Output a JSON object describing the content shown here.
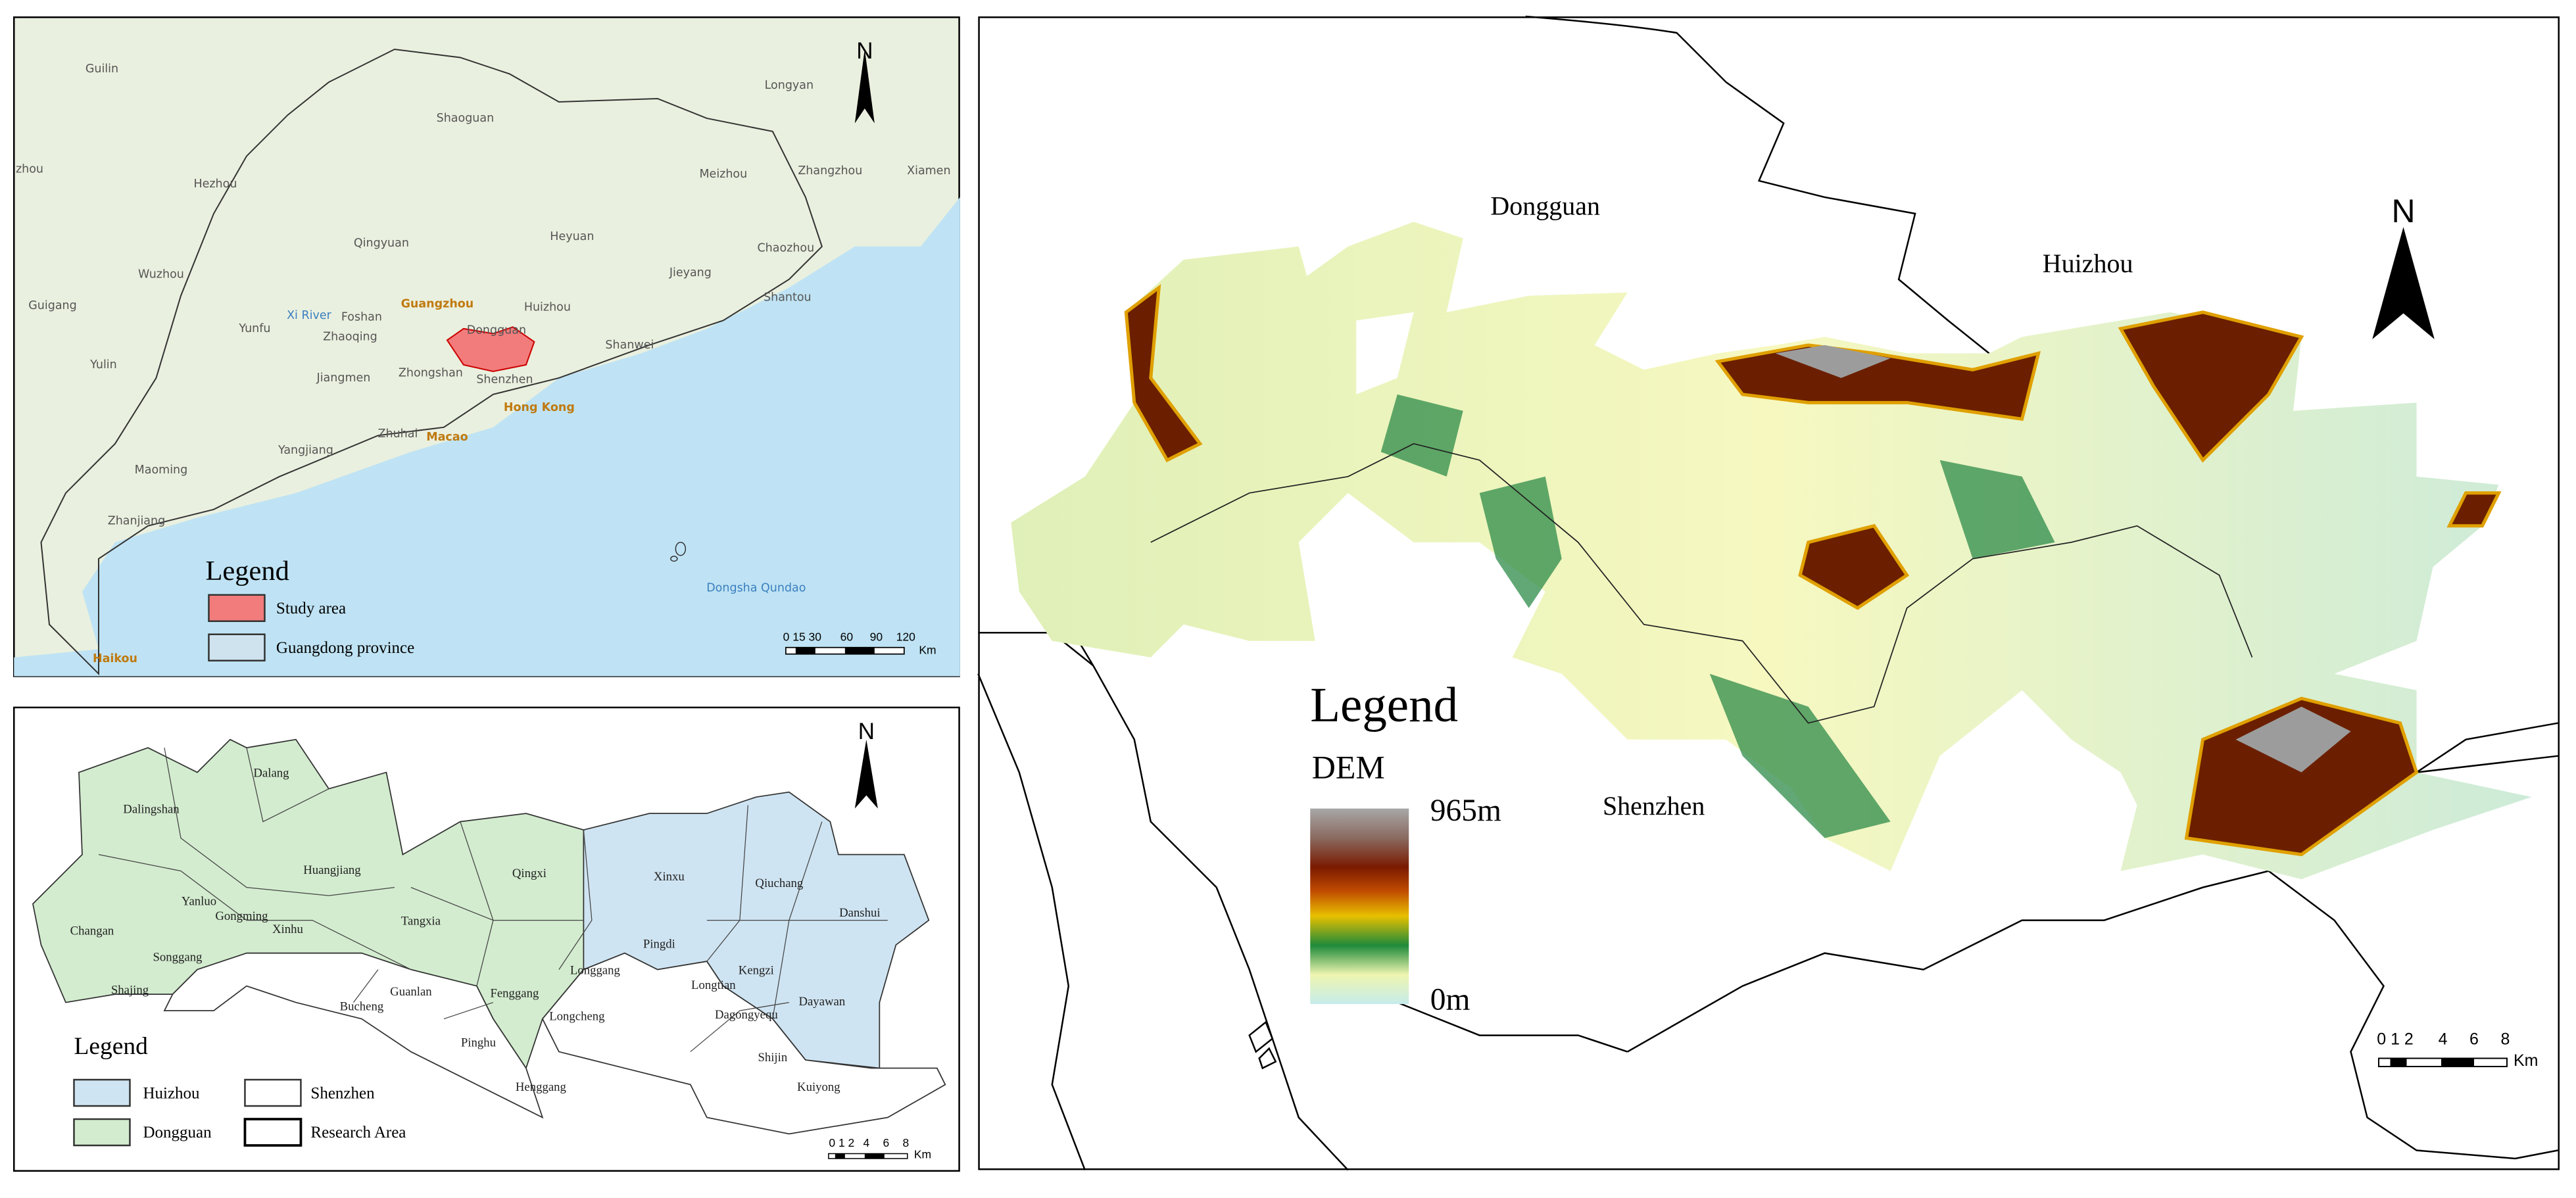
{
  "overview_map": {
    "places": [
      "Guilin",
      "Longyan",
      "Shaoguan",
      "zhou",
      "Hezhou",
      "Meizhou",
      "Zhangzhou",
      "Xiamen",
      "Qingyuan",
      "Heyuan",
      "Chaozhou",
      "Wuzhou",
      "Jieyang",
      "Shantou",
      "Guigang",
      "Guangzhou",
      "Foshan",
      "Huizhou",
      "Xi River",
      "Yunfu",
      "Zhaoqing",
      "Dongguan",
      "Shanwei",
      "Yulin",
      "Jiangmen",
      "Zhongshan",
      "Shenzhen",
      "Hong Kong",
      "Yangjiang",
      "Zhuhai",
      "Macao",
      "Maoming",
      "Zhanjiang",
      "Dongsha Qundao",
      "Haikou"
    ],
    "north": "N",
    "legend": {
      "title": "Legend",
      "items": [
        "Study area",
        "Guangdong province"
      ]
    },
    "scale": {
      "labels": [
        "0 15 30",
        "60",
        "90",
        "120"
      ],
      "unit": "Km"
    }
  },
  "district_map": {
    "districts": [
      "Dalang",
      "Dalingshan",
      "Huangjiang",
      "Qingxi",
      "Xinxu",
      "Qiuchang",
      "Danshui",
      "Yanluo",
      "Gongming",
      "Changan",
      "Xinhu",
      "Tangxia",
      "Pingdi",
      "Songgang",
      "Longgang",
      "Shajing",
      "Kengzi",
      "Longtian",
      "Fenggang",
      "Guanlan",
      "Bucheng",
      "Dayawan",
      "Longcheng",
      "Dagongyequ",
      "Pinghu",
      "Shijin",
      "Henggang",
      "Kuiyong"
    ],
    "north": "N",
    "legend": {
      "title": "Legend",
      "items": [
        "Huizhou",
        "Shenzhen",
        "Dongguan",
        "Research Area"
      ]
    },
    "scale": {
      "labels": [
        "0 1 2",
        "4",
        "6",
        "8"
      ],
      "unit": "Km"
    }
  },
  "dem_map": {
    "regions": [
      "Dongguan",
      "Huizhou",
      "Shenzhen"
    ],
    "north": "N",
    "legend": {
      "title": "Legend",
      "subtitle": "DEM",
      "max": "965m",
      "min": "0m"
    },
    "scale": {
      "labels": [
        "0 1 2",
        "4",
        "6",
        "8"
      ],
      "unit": "Km"
    }
  }
}
